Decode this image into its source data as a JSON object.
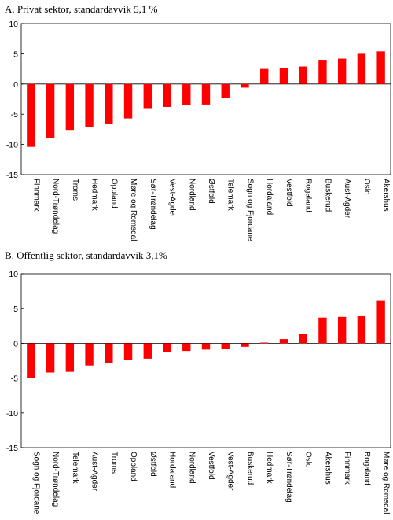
{
  "chart_data": [
    {
      "type": "bar",
      "title": "A.  Privat sektor, standardavvik 5,1 %",
      "categories": [
        "Finnmark",
        "Nord-Trøndelag",
        "Troms",
        "Hedmark",
        "Oppland",
        "Møre og Romsdal",
        "Sør-Trøndelag",
        "Vest-Agder",
        "Nordland",
        "Østfold",
        "Telemark",
        "Sogn og Fjordane",
        "Hordaland",
        "Vestfold",
        "Rogaland",
        "Buskerud",
        "Aust-Agder",
        "Oslo",
        "Akershus"
      ],
      "values": [
        -10.4,
        -8.9,
        -7.6,
        -7.1,
        -6.6,
        -5.7,
        -4.0,
        -3.8,
        -3.5,
        -3.4,
        -2.3,
        -0.6,
        2.5,
        2.7,
        2.9,
        4.0,
        4.2,
        5.0,
        5.4
      ],
      "ylim": [
        -15,
        10
      ],
      "yticks": [
        10,
        5,
        0,
        -5,
        -10,
        -15
      ],
      "bar_color": "#ff0000"
    },
    {
      "type": "bar",
      "title": "B.  Offentlig sektor, standardavvik 3,1%",
      "categories": [
        "Sogn og Fjordane",
        "Nord-Trøndelag",
        "Telemark",
        "Aust-Agder",
        "Troms",
        "Oppland",
        "Østfold",
        "Hordaland",
        "Nordland",
        "Vestfold",
        "Vest-Agder",
        "Buskerud",
        "Hedmark",
        "Sør-Trøndelag",
        "Oslo",
        "Akershus",
        "Finnmark",
        "Rogaland",
        "Møre og Romsdal"
      ],
      "values": [
        -5.0,
        -4.2,
        -4.1,
        -3.2,
        -2.9,
        -2.4,
        -2.2,
        -1.3,
        -1.1,
        -0.9,
        -0.8,
        -0.5,
        0.1,
        0.6,
        1.3,
        3.7,
        3.8,
        3.9,
        6.2
      ],
      "ylim": [
        -15,
        10
      ],
      "yticks": [
        10,
        5,
        0,
        -5,
        -10,
        -15
      ],
      "bar_color": "#ff0000"
    }
  ]
}
